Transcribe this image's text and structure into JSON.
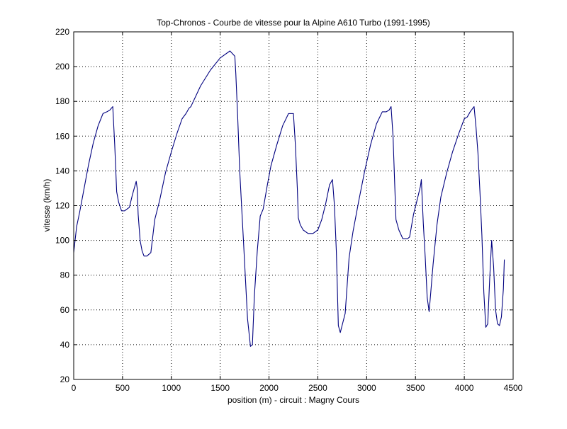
{
  "chart_data": {
    "type": "line",
    "title": "Top-Chronos - Courbe de vitesse pour la Alpine A610 Turbo (1991-1995)",
    "xlabel": "position (m) - circuit : Magny Cours",
    "ylabel": "vitesse (km/h)",
    "xlim": [
      0,
      4500
    ],
    "ylim": [
      20,
      220
    ],
    "xticks": [
      0,
      500,
      1000,
      1500,
      2000,
      2500,
      3000,
      3500,
      4000,
      4500
    ],
    "yticks": [
      20,
      40,
      60,
      80,
      100,
      120,
      140,
      160,
      180,
      200,
      220
    ],
    "xtick_labels": [
      "0",
      "500",
      "1000",
      "1500",
      "2000",
      "2500",
      "3000",
      "3500",
      "4000",
      "4500"
    ],
    "ytick_labels": [
      "20",
      "40",
      "60",
      "80",
      "100",
      "120",
      "140",
      "160",
      "180",
      "200",
      "220"
    ],
    "grid": true,
    "line_color": "#00007f",
    "series": [
      {
        "x": [
          0,
          30,
          60,
          100,
          150,
          200,
          250,
          300,
          340,
          370,
          400,
          420,
          440,
          460,
          490,
          520,
          570,
          600,
          620,
          640,
          650,
          660,
          680,
          700,
          720,
          750,
          790,
          830,
          880,
          940,
          1000,
          1060,
          1110,
          1150,
          1180,
          1200,
          1300,
          1400,
          1500,
          1600,
          1650,
          1660,
          1680,
          1700,
          1740,
          1780,
          1810,
          1830,
          1850,
          1880,
          1910,
          1940,
          1980,
          2020,
          2080,
          2140,
          2200,
          2250,
          2270,
          2290,
          2300,
          2320,
          2350,
          2400,
          2450,
          2500,
          2540,
          2580,
          2620,
          2650,
          2670,
          2690,
          2710,
          2730,
          2780,
          2820,
          2860,
          2920,
          2980,
          3040,
          3100,
          3160,
          3200,
          3230,
          3250,
          3270,
          3300,
          3330,
          3370,
          3420,
          3440,
          3480,
          3520,
          3550,
          3560,
          3580,
          3600,
          3620,
          3640,
          3680,
          3720,
          3760,
          3820,
          3880,
          3940,
          4000,
          4030,
          4060,
          4100,
          4120,
          4140,
          4160,
          4180,
          4200,
          4220,
          4240,
          4260,
          4280,
          4300,
          4320,
          4340,
          4360,
          4380,
          4400,
          4410
        ],
        "y": [
          93,
          108,
          116,
          128,
          143,
          156,
          166,
          173,
          174,
          175,
          177,
          155,
          128,
          122,
          117,
          117,
          119,
          126,
          130,
          134,
          130,
          115,
          100,
          94,
          91,
          91,
          93,
          112,
          123,
          139,
          151,
          162,
          170,
          173,
          176,
          177,
          189,
          198,
          205,
          209,
          206,
          196,
          170,
          140,
          98,
          55,
          39,
          40,
          68,
          94,
          114,
          118,
          131,
          143,
          155,
          166,
          173,
          173,
          155,
          130,
          113,
          109,
          106,
          104,
          104,
          106,
          112,
          121,
          132,
          135,
          120,
          93,
          51,
          47,
          58,
          90,
          105,
          123,
          140,
          155,
          167,
          174,
          174,
          175,
          177,
          160,
          112,
          106,
          101,
          101,
          102,
          115,
          124,
          131,
          135,
          110,
          90,
          67,
          59,
          86,
          109,
          125,
          139,
          151,
          161,
          170,
          171,
          174,
          177,
          165,
          150,
          128,
          103,
          70,
          50,
          52,
          78,
          100,
          85,
          60,
          52,
          51,
          56,
          72,
          89
        ]
      }
    ]
  }
}
